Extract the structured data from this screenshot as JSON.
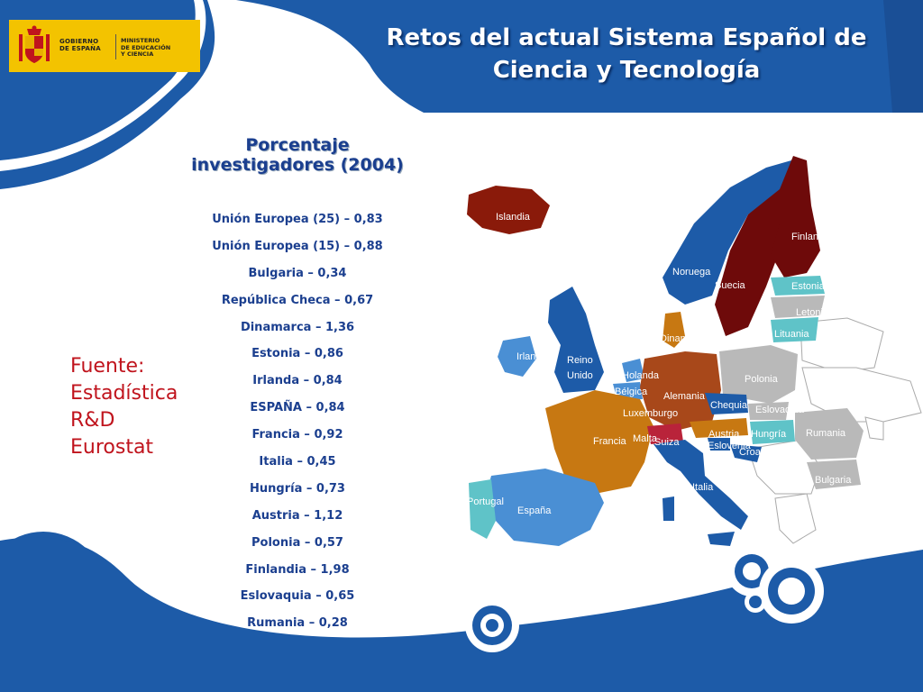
{
  "header": {
    "logo_line1": "GOBIERNO",
    "logo_line2": "DE ESPAÑA",
    "ministry_line1": "MINISTERIO",
    "ministry_line2": "DE EDUCACIÓN",
    "ministry_line3": "Y CIENCIA",
    "title_line1": "Retos del actual Sistema Español de",
    "title_line2": "Ciencia y Tecnología"
  },
  "list": {
    "title_line1": "Porcentaje",
    "title_line2": "investigadores (2004)",
    "items": [
      "Unión Europea (25) – 0,83",
      "Unión Europea (15) – 0,88",
      "Bulgaria – 0,34",
      "República Checa – 0,67",
      "Dinamarca – 1,36",
      "Estonia – 0,86",
      "Irlanda – 0,84",
      "ESPAÑA – 0,84",
      "Francia – 0,92",
      "Italia – 0,45",
      "Hungría – 0,73",
      "Austria – 1,12",
      "Polonia – 0,57",
      "Finlandia – 1,98",
      "Eslovaquia – 0,65",
      "Rumania – 0,28"
    ]
  },
  "source": {
    "line1": "Fuente:",
    "line2": "Estadística",
    "line3": "R&D",
    "line4": "Eurostat"
  },
  "map": {
    "labels": {
      "islandia": "Islandia",
      "finlandia": "Finlandia",
      "noruega": "Noruega",
      "suecia": "Suecia",
      "estonia": "Estonia",
      "letonia": "Letonia",
      "lituania": "Lituania",
      "dinamarca": "Dinamarca",
      "irlanda": "Irlanda",
      "reino_unido_1": "Reino",
      "reino_unido_2": "Unido",
      "holanda": "Holanda",
      "belgica": "Bélgica",
      "alemania": "Alemania",
      "polonia": "Polonia",
      "luxemburgo": "Luxemburgo",
      "chequia": "Chequia",
      "eslovaquia": "Eslovaquia",
      "francia": "Francia",
      "malta": "Malta",
      "suiza": "Suiza",
      "austria": "Austria",
      "hungria": "Hungría",
      "rumania": "Rumania",
      "eslovenia": "Eslovenia",
      "croacia": "Croacia",
      "italia": "Italia",
      "bulgaria": "Bulgaria",
      "portugal": "Portugal",
      "espana": "España"
    }
  },
  "colors": {
    "blue_dark": "#1d5ba8",
    "blue_light": "#4a8fd4",
    "maroon": "#6e0a0a",
    "orange": "#c77812",
    "teal": "#5fc3c8",
    "grey": "#b9b9b9",
    "source_red": "#c0141d"
  }
}
